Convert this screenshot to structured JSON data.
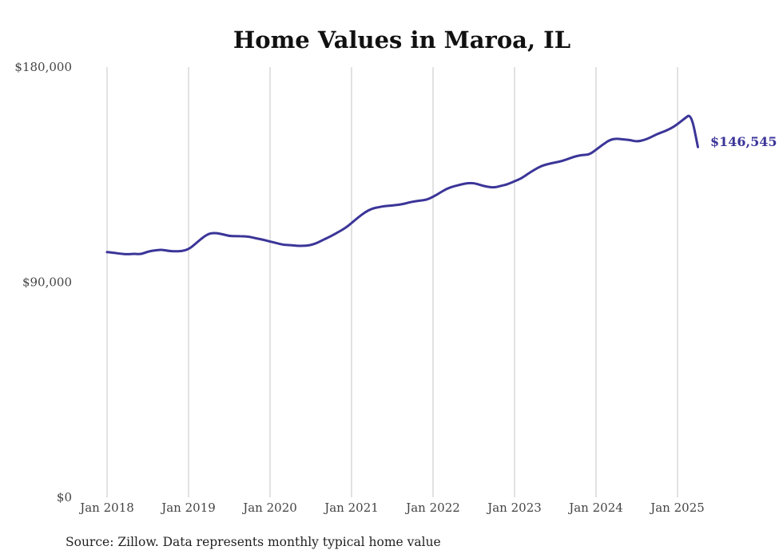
{
  "chart_data": {
    "type": "line",
    "title": "Home Values in Maroa, IL",
    "source": "Source: Zillow. Data represents monthly typical home value",
    "y_ticks": [
      "$0",
      "$90,000",
      "$180,000"
    ],
    "x_ticks": [
      "Jan 2018",
      "Jan 2019",
      "Jan 2020",
      "Jan 2021",
      "Jan 2022",
      "Jan 2023",
      "Jan 2024",
      "Jan 2025"
    ],
    "ylim": [
      0,
      180000
    ],
    "grid": "vertical",
    "line_color": "#3b3598",
    "end_label": "$146,545",
    "series": [
      {
        "x": [
          "2018-01",
          "2018-02",
          "2018-03",
          "2018-04",
          "2018-05",
          "2018-06",
          "2018-07",
          "2018-08",
          "2018-09",
          "2018-10",
          "2018-11",
          "2018-12",
          "2019-01",
          "2019-02",
          "2019-03",
          "2019-04",
          "2019-05",
          "2019-06",
          "2019-07",
          "2019-08",
          "2019-09",
          "2019-10",
          "2019-11",
          "2019-12",
          "2020-01",
          "2020-02",
          "2020-03",
          "2020-04",
          "2020-05",
          "2020-06",
          "2020-07",
          "2020-08",
          "2020-09",
          "2020-10",
          "2020-11",
          "2020-12",
          "2021-01",
          "2021-02",
          "2021-03",
          "2021-04",
          "2021-05",
          "2021-06",
          "2021-07",
          "2021-08",
          "2021-09",
          "2021-10",
          "2021-11",
          "2021-12",
          "2022-01",
          "2022-02",
          "2022-03",
          "2022-04",
          "2022-05",
          "2022-06",
          "2022-07",
          "2022-08",
          "2022-09",
          "2022-10",
          "2022-11",
          "2022-12",
          "2023-01",
          "2023-02",
          "2023-03",
          "2023-04",
          "2023-05",
          "2023-06",
          "2023-07",
          "2023-08",
          "2023-09",
          "2023-10",
          "2023-11",
          "2023-12",
          "2024-01",
          "2024-02",
          "2024-03",
          "2024-04",
          "2024-05",
          "2024-06",
          "2024-07",
          "2024-08",
          "2024-09",
          "2024-10",
          "2024-11",
          "2024-12",
          "2025-01",
          "2025-02",
          "2025-03",
          "2025-04"
        ],
        "values": [
          102600,
          102300,
          101900,
          101700,
          101900,
          101700,
          102800,
          103300,
          103600,
          103100,
          102900,
          103000,
          103800,
          106000,
          108500,
          110400,
          110600,
          110100,
          109300,
          109300,
          109200,
          109000,
          108300,
          107800,
          107000,
          106300,
          105600,
          105500,
          105200,
          105200,
          105500,
          106500,
          108000,
          109300,
          110900,
          112500,
          114700,
          117200,
          119300,
          120800,
          121400,
          121900,
          122100,
          122400,
          123000,
          123700,
          124100,
          124400,
          125700,
          127400,
          129100,
          130100,
          130800,
          131400,
          131500,
          130600,
          129900,
          129600,
          130300,
          131000,
          132200,
          133400,
          135400,
          137200,
          138700,
          139500,
          140100,
          140700,
          141700,
          142700,
          143200,
          143400,
          145400,
          147600,
          149500,
          150100,
          149700,
          149500,
          148800,
          149400,
          150500,
          152000,
          153000,
          154300,
          156100,
          158400,
          160500,
          146545
        ]
      }
    ]
  }
}
